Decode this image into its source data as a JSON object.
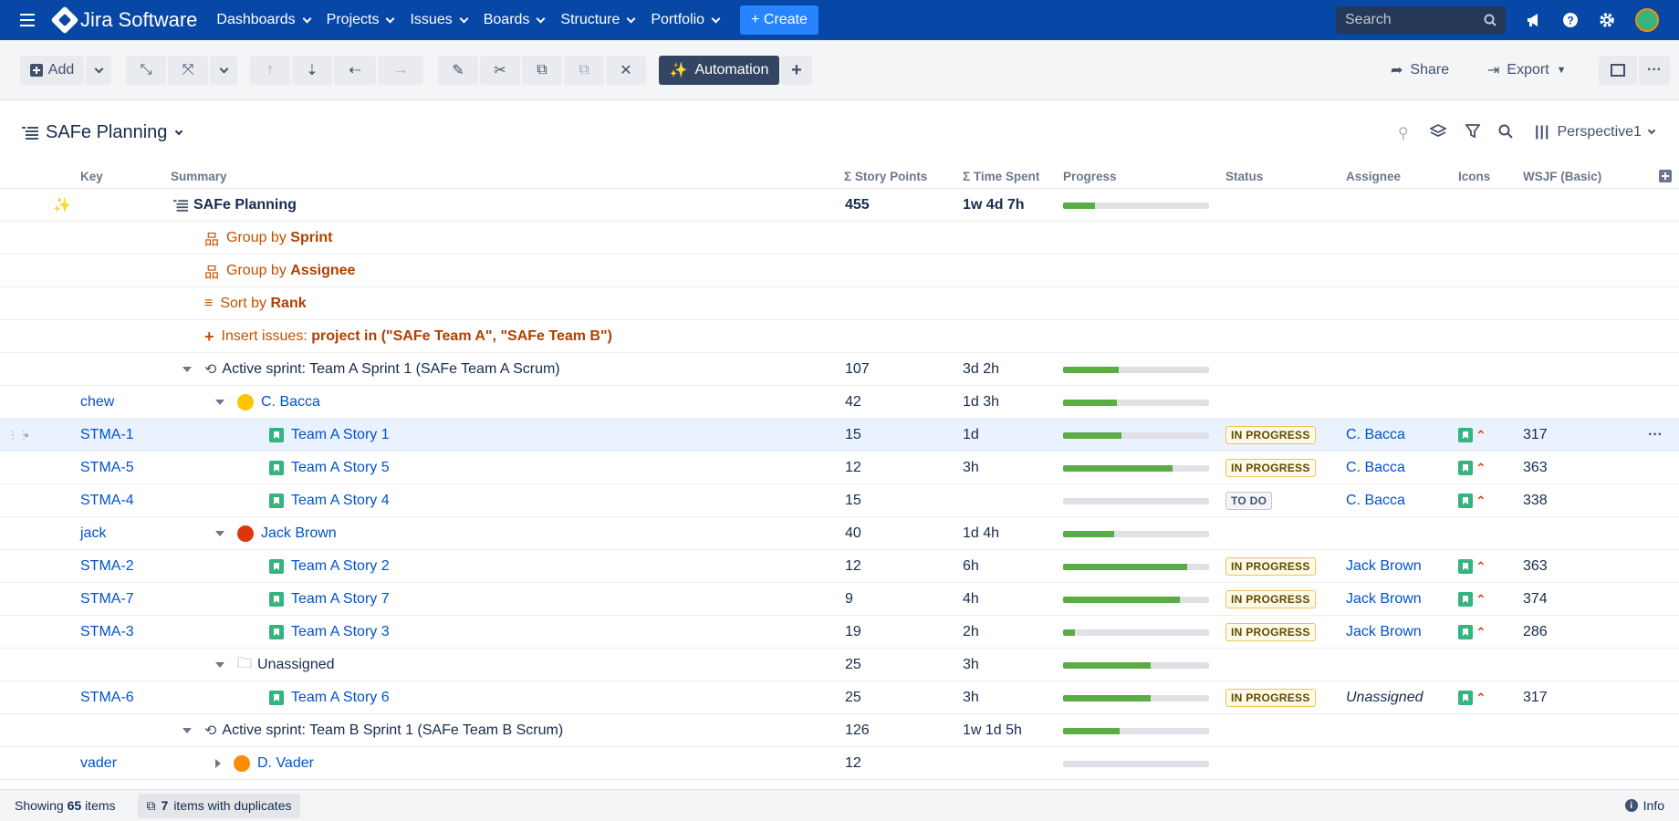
{
  "nav": {
    "product": "Jira Software",
    "items": [
      "Dashboards",
      "Projects",
      "Issues",
      "Boards",
      "Structure",
      "Portfolio"
    ],
    "create": "+ Create",
    "search_placeholder": "Search"
  },
  "toolbar": {
    "add": "Add",
    "automation": "Automation",
    "share": "Share",
    "export": "Export"
  },
  "structure": {
    "title": "SAFe Planning",
    "perspective": "Perspective1"
  },
  "columns": {
    "key": "Key",
    "summary": "Summary",
    "story_points": "Σ Story Points",
    "time_spent": "Σ Time Spent",
    "progress": "Progress",
    "status": "Status",
    "assignee": "Assignee",
    "icons": "Icons",
    "wsjf": "WSJF (Basic)"
  },
  "root_row": {
    "summary": "SAFe Planning",
    "points": "455",
    "time": "1w 4d 7h",
    "progress": 0.22
  },
  "generators": [
    {
      "pre": "Group by ",
      "bold": "Sprint"
    },
    {
      "pre": "Group by ",
      "bold": "Assignee"
    },
    {
      "pre": "Sort by ",
      "bold": "Rank"
    },
    {
      "pre": "Insert issues: ",
      "bold": "project in (\"SAFe Team A\", \"SAFe Team B\")"
    }
  ],
  "rows": [
    {
      "kind": "sprint",
      "summary": "Active sprint: Team A Sprint 1 (SAFe Team A Scrum)",
      "points": "107",
      "time": "3d 2h",
      "progress": 0.38
    },
    {
      "kind": "user",
      "key": "chew",
      "summary": "C. Bacca",
      "points": "42",
      "time": "1d 3h",
      "progress": 0.37
    },
    {
      "kind": "issue",
      "key": "STMA-1",
      "summary": "Team A Story 1",
      "points": "15",
      "time": "1d",
      "progress": 0.4,
      "status": "IN PROGRESS",
      "assignee": "C. Bacca",
      "wsjf": "317"
    },
    {
      "kind": "issue",
      "key": "STMA-5",
      "summary": "Team A Story 5",
      "points": "12",
      "time": "3h",
      "progress": 0.75,
      "status": "IN PROGRESS",
      "assignee": "C. Bacca",
      "wsjf": "363"
    },
    {
      "kind": "issue",
      "key": "STMA-4",
      "summary": "Team A Story 4",
      "points": "15",
      "time": "",
      "progress": 0,
      "status": "TO DO",
      "assignee": "C. Bacca",
      "wsjf": "338"
    },
    {
      "kind": "user",
      "key": "jack",
      "summary": "Jack Brown",
      "points": "40",
      "time": "1d 4h",
      "progress": 0.35
    },
    {
      "kind": "issue",
      "key": "STMA-2",
      "summary": "Team A Story 2",
      "points": "12",
      "time": "6h",
      "progress": 0.85,
      "status": "IN PROGRESS",
      "assignee": "Jack Brown",
      "wsjf": "363"
    },
    {
      "kind": "issue",
      "key": "STMA-7",
      "summary": "Team A Story 7",
      "points": "9",
      "time": "4h",
      "progress": 0.8,
      "status": "IN PROGRESS",
      "assignee": "Jack Brown",
      "wsjf": "374"
    },
    {
      "kind": "issue",
      "key": "STMA-3",
      "summary": "Team A Story 3",
      "points": "19",
      "time": "2h",
      "progress": 0.08,
      "status": "IN PROGRESS",
      "assignee": "Jack Brown",
      "wsjf": "286"
    },
    {
      "kind": "folder",
      "summary": "Unassigned",
      "points": "25",
      "time": "3h",
      "progress": 0.6
    },
    {
      "kind": "issue",
      "key": "STMA-6",
      "summary": "Team A Story 6",
      "points": "25",
      "time": "3h",
      "progress": 0.6,
      "status": "IN PROGRESS",
      "assignee": "Unassigned",
      "wsjf": "317"
    },
    {
      "kind": "sprint",
      "summary": "Active sprint: Team B Sprint 1 (SAFe Team B Scrum)",
      "points": "126",
      "time": "1w 1d 5h",
      "progress": 0.39
    },
    {
      "kind": "user",
      "key": "vader",
      "summary": "D. Vader",
      "points": "12",
      "time": "",
      "progress": 0
    }
  ],
  "footer": {
    "showing_pre": "Showing",
    "showing_count": "65",
    "showing_post": "items",
    "dup_count": "7",
    "dup_text": "items with duplicates",
    "info": "Info"
  },
  "colors": {
    "nav_bg": "#0747a6",
    "create": "#2684ff",
    "progress": "#5aac44",
    "link": "#0052cc",
    "generator": "#c25100"
  }
}
